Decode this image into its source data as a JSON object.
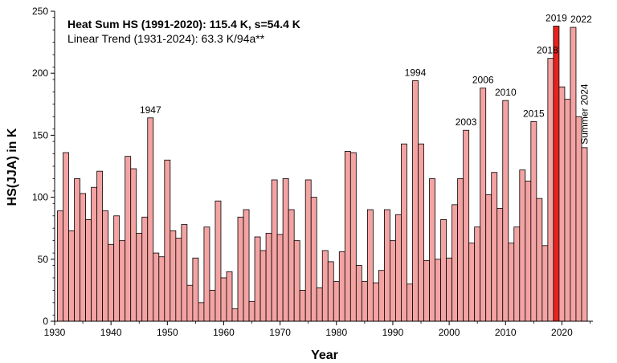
{
  "chart_data": {
    "type": "bar",
    "info_line_1": "Heat Sum HS (1991-2020): 115.4 K, s=54.4 K",
    "info_line_2": "Linear Trend (1931-2024): 63.3 K/94a**",
    "xlabel": "Year",
    "ylabel": "HS(JJA) in K",
    "xlim": [
      1930,
      2025.5
    ],
    "ylim": [
      0,
      250
    ],
    "x_ticks": [
      1930,
      1940,
      1950,
      1960,
      1970,
      1980,
      1990,
      2000,
      2010,
      2020
    ],
    "y_ticks": [
      0,
      50,
      100,
      150,
      200,
      250
    ],
    "bar_color": "#f4a3a3",
    "highlight_color": "#e8231f",
    "highlight_year": 2019,
    "grid": false,
    "x": [
      1931,
      1932,
      1933,
      1934,
      1935,
      1936,
      1937,
      1938,
      1939,
      1940,
      1941,
      1942,
      1943,
      1944,
      1945,
      1946,
      1947,
      1948,
      1949,
      1950,
      1951,
      1952,
      1953,
      1954,
      1955,
      1956,
      1957,
      1958,
      1959,
      1960,
      1961,
      1962,
      1963,
      1964,
      1965,
      1966,
      1967,
      1968,
      1969,
      1970,
      1971,
      1972,
      1973,
      1974,
      1975,
      1976,
      1977,
      1978,
      1979,
      1980,
      1981,
      1982,
      1983,
      1984,
      1985,
      1986,
      1987,
      1988,
      1989,
      1990,
      1991,
      1992,
      1993,
      1994,
      1995,
      1996,
      1997,
      1998,
      1999,
      2000,
      2001,
      2002,
      2003,
      2004,
      2005,
      2006,
      2007,
      2008,
      2009,
      2010,
      2011,
      2012,
      2013,
      2014,
      2015,
      2016,
      2017,
      2018,
      2019,
      2020,
      2021,
      2022,
      2023,
      2024
    ],
    "values": [
      89,
      136,
      73,
      115,
      103,
      82,
      108,
      121,
      89,
      62,
      85,
      65,
      133,
      123,
      71,
      84,
      164,
      55,
      52,
      130,
      73,
      67,
      78,
      29,
      51,
      15,
      76,
      25,
      97,
      35,
      40,
      10,
      84,
      90,
      16,
      68,
      57,
      71,
      114,
      70,
      115,
      90,
      65,
      25,
      114,
      100,
      27,
      57,
      48,
      32,
      56,
      137,
      136,
      45,
      32,
      90,
      31,
      41,
      90,
      65,
      86,
      143,
      30,
      194,
      143,
      49,
      115,
      50,
      82,
      51,
      94,
      115,
      154,
      63,
      76,
      188,
      102,
      120,
      91,
      178,
      63,
      76,
      122,
      113,
      161,
      99,
      61,
      212,
      238,
      189,
      179,
      237,
      165,
      140
    ],
    "annotations": [
      {
        "label": "1947",
        "year": 1947,
        "value": 164
      },
      {
        "label": "1994",
        "year": 1994,
        "value": 194
      },
      {
        "label": "2003",
        "year": 2003,
        "value": 154
      },
      {
        "label": "2006",
        "year": 2006,
        "value": 188
      },
      {
        "label": "2010",
        "year": 2010,
        "value": 178
      },
      {
        "label": "2015",
        "year": 2015,
        "value": 161
      },
      {
        "label": "2018",
        "year": 2018,
        "value": 212
      },
      {
        "label": "2019",
        "year": 2019,
        "value": 238
      },
      {
        "label": "2022",
        "year": 2022,
        "value": 237
      },
      {
        "label": "Summer 2024",
        "year": 2024,
        "value": 140,
        "rotated": true
      }
    ]
  }
}
